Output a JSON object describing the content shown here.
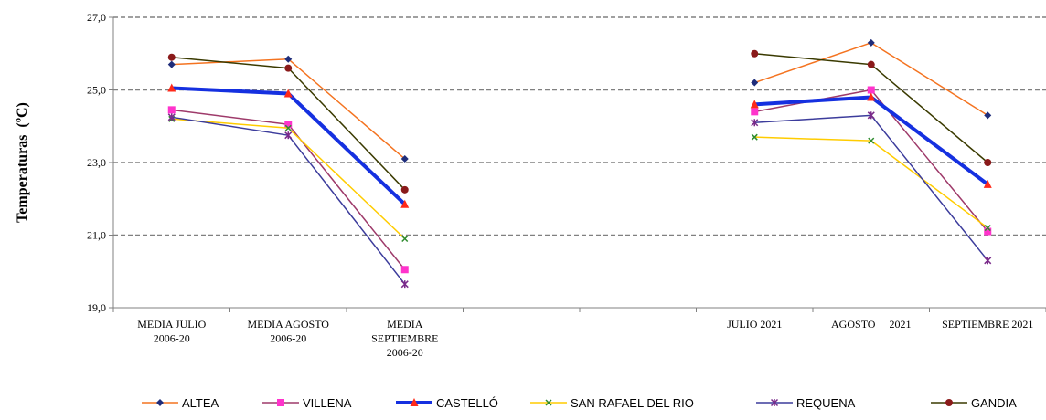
{
  "chart_data": {
    "type": "line",
    "xlabel": "",
    "ylabel": "Temperaturas  (ºC)",
    "ylim": [
      19,
      27
    ],
    "yticks": [
      "19,0",
      "21,0",
      "23,0",
      "25,0",
      "27,0"
    ],
    "ytick_values": [
      19,
      21,
      23,
      25,
      27
    ],
    "grid": "horizontal dashed",
    "legend_position": "bottom",
    "categories": [
      [
        "MEDIA JULIO",
        "2006-20"
      ],
      [
        "MEDIA AGOSTO",
        "2006-20"
      ],
      [
        "MEDIA",
        "SEPTIEMBRE",
        "2006-20"
      ],
      [
        ""
      ],
      [
        ""
      ],
      [
        "JULIO 2021"
      ],
      [
        "AGOSTO     2021"
      ],
      [
        "SEPTIEMBRE 2021"
      ]
    ],
    "series": [
      {
        "name": "ALTEA",
        "color": "#f47320",
        "marker": "diamond",
        "marker_color": "#1f2d7a",
        "width": 1.5,
        "values": [
          25.7,
          25.85,
          23.1,
          null,
          null,
          25.2,
          26.3,
          24.3
        ]
      },
      {
        "name": "VILLENA",
        "color": "#9e3a6a",
        "marker": "square",
        "marker_color": "#ff33cc",
        "width": 1.5,
        "values": [
          24.45,
          24.05,
          20.05,
          null,
          null,
          24.4,
          25.0,
          21.1
        ]
      },
      {
        "name": "CASTELLÓ",
        "color": "#1530e0",
        "marker": "triangle",
        "marker_color": "#ff2a1a",
        "width": 4,
        "values": [
          25.05,
          24.9,
          21.85,
          null,
          null,
          24.6,
          24.8,
          22.4
        ]
      },
      {
        "name": "SAN RAFAEL DEL RIO",
        "color": "#ffcc00",
        "marker": "cross",
        "marker_color": "#2e8b2e",
        "width": 1.5,
        "values": [
          24.2,
          23.95,
          20.9,
          null,
          null,
          23.7,
          23.6,
          21.2
        ]
      },
      {
        "name": "REQUENA",
        "color": "#3c3c9c",
        "marker": "star",
        "marker_color": "#7a2a8a",
        "width": 1.5,
        "values": [
          24.25,
          23.75,
          19.65,
          null,
          null,
          24.1,
          24.3,
          20.3
        ]
      },
      {
        "name": "GANDIA",
        "color": "#3a3a00",
        "marker": "circle",
        "marker_color": "#8a1a1a",
        "width": 1.5,
        "values": [
          25.9,
          25.6,
          22.25,
          null,
          null,
          26.0,
          25.7,
          23.0
        ]
      }
    ]
  }
}
